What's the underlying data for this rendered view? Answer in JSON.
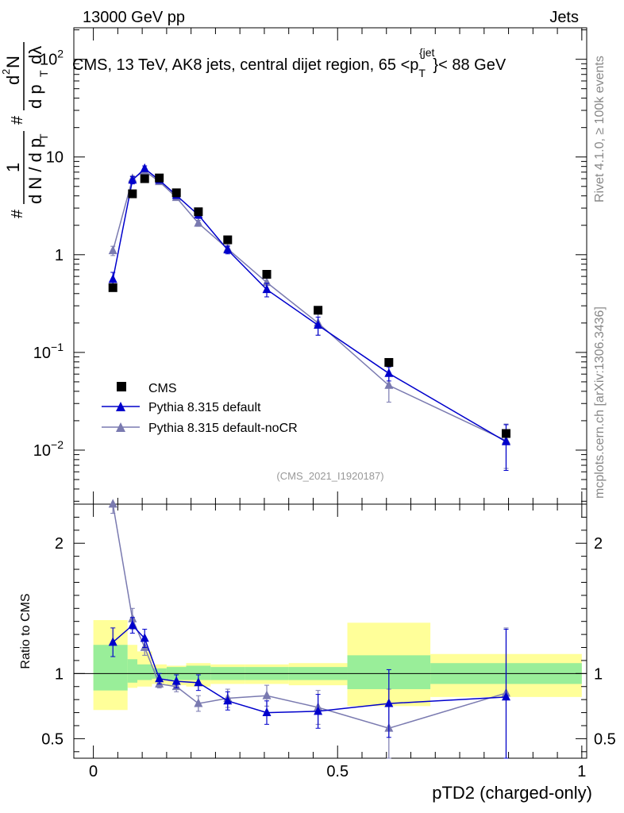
{
  "header": {
    "left": "13000 GeV pp",
    "right": "Jets"
  },
  "side_labels": {
    "rivet": "Rivet 4.1.0, ≥ 100k events",
    "mcplots": "mcplots.cern.ch [arXiv:1306.3436]"
  },
  "chart_data": [
    {
      "type": "scatter",
      "panel": "main",
      "title": "CMS, 13 TeV, AK8 jets, central dijet region, 65 <p_T^{jet}>< 88 GeV",
      "title_parts": {
        "a": "CMS, 13 TeV, AK8 jets, central dijet region, 65 <p",
        "sub": "T",
        "sup": "{jet",
        "b": "}< 88 GeV"
      },
      "ylabel": "1/(dN/dp_T) d²N/(dp_T dλ)",
      "ylabel_parts": {
        "hash": "#",
        "one": "1",
        "den": "d N / d p",
        "t": "T",
        "num": "d",
        "n": "N",
        "two": "2",
        "dp": "d p",
        "dl": "dλ"
      },
      "yscale": "log",
      "ylim": [
        0.0028,
        210
      ],
      "y_ticks": [
        {
          "value": 100,
          "base": "10",
          "exp": "2"
        },
        {
          "value": 10,
          "base": "10",
          "exp": ""
        },
        {
          "value": 1,
          "base": "1",
          "exp": ""
        },
        {
          "value": 0.1,
          "base": "10",
          "exp": "−1"
        },
        {
          "value": 0.01,
          "base": "10",
          "exp": "−2"
        }
      ],
      "x": [
        0.04,
        0.08,
        0.105,
        0.135,
        0.17,
        0.215,
        0.275,
        0.355,
        0.46,
        0.605,
        0.845
      ],
      "series": [
        {
          "name": "CMS",
          "marker": "square",
          "color": "#000000",
          "values": [
            0.46,
            4.2,
            6.0,
            6.1,
            4.3,
            2.75,
            1.42,
            0.63,
            0.27,
            0.079,
            0.0148
          ]
        },
        {
          "name": "Pythia 8.315 default",
          "marker": "triangle",
          "color": "#0000cc",
          "values": [
            0.56,
            5.8,
            7.6,
            5.8,
            4.05,
            2.55,
            1.12,
            0.44,
            0.19,
            0.061,
            0.0122
          ],
          "err_up": [
            0.1,
            0.5,
            0.5,
            0.35,
            0.25,
            0.2,
            0.1,
            0.07,
            0.04,
            0.01,
            0.006
          ],
          "err_dn": [
            0.1,
            0.5,
            0.5,
            0.35,
            0.25,
            0.2,
            0.1,
            0.07,
            0.04,
            0.01,
            0.006
          ]
        },
        {
          "name": "Pythia 8.315 default-noCR",
          "marker": "triangle",
          "color": "#7a7ab0",
          "values": [
            1.1,
            6.0,
            7.2,
            5.6,
            3.85,
            2.1,
            1.15,
            0.52,
            0.2,
            0.046,
            0.0125
          ],
          "err_up": [
            0.12,
            0.4,
            0.4,
            0.3,
            0.25,
            0.15,
            0.1,
            0.08,
            0.05,
            0.015,
            0.006
          ],
          "err_dn": [
            0.12,
            0.4,
            0.4,
            0.3,
            0.25,
            0.15,
            0.1,
            0.08,
            0.05,
            0.015,
            0.006
          ]
        }
      ],
      "legend": [
        "CMS",
        "Pythia 8.315 default",
        "Pythia 8.315 default-noCR"
      ],
      "legend_position": "bottom-left",
      "annotation": "(CMS_2021_I1920187)"
    },
    {
      "type": "line",
      "panel": "ratio",
      "ylabel": "Ratio to CMS",
      "xlabel": "pTD2 (charged-only)",
      "xlim": [
        -0.04,
        1.01
      ],
      "ylim": [
        0.35,
        2.3
      ],
      "x_ticks": [
        {
          "value": 0,
          "label": "0"
        },
        {
          "value": 0.5,
          "label": "0.5"
        },
        {
          "value": 1,
          "label": "1"
        }
      ],
      "y_ticks": [
        {
          "value": 0.5,
          "label": "0.5"
        },
        {
          "value": 1,
          "label": "1"
        },
        {
          "value": 2,
          "label": "2"
        }
      ],
      "reference_line": 1,
      "bands": [
        {
          "x_lo": 0.0,
          "x_hi": 0.07,
          "yellow": [
            0.72,
            1.41
          ],
          "green": [
            0.87,
            1.22
          ]
        },
        {
          "x_lo": 0.07,
          "x_hi": 0.09,
          "yellow": [
            0.89,
            1.22
          ],
          "green": [
            0.93,
            1.11
          ]
        },
        {
          "x_lo": 0.09,
          "x_hi": 0.12,
          "yellow": [
            0.9,
            1.17
          ],
          "green": [
            0.95,
            1.07
          ]
        },
        {
          "x_lo": 0.12,
          "x_hi": 0.15,
          "yellow": [
            0.92,
            1.07
          ],
          "green": [
            0.96,
            1.04
          ]
        },
        {
          "x_lo": 0.15,
          "x_hi": 0.19,
          "yellow": [
            0.91,
            1.06
          ],
          "green": [
            0.95,
            1.05
          ]
        },
        {
          "x_lo": 0.19,
          "x_hi": 0.24,
          "yellow": [
            0.9,
            1.08
          ],
          "green": [
            0.95,
            1.06
          ]
        },
        {
          "x_lo": 0.24,
          "x_hi": 0.31,
          "yellow": [
            0.92,
            1.07
          ],
          "green": [
            0.95,
            1.05
          ]
        },
        {
          "x_lo": 0.31,
          "x_hi": 0.4,
          "yellow": [
            0.92,
            1.07
          ],
          "green": [
            0.95,
            1.05
          ]
        },
        {
          "x_lo": 0.4,
          "x_hi": 0.52,
          "yellow": [
            0.91,
            1.08
          ],
          "green": [
            0.95,
            1.05
          ]
        },
        {
          "x_lo": 0.52,
          "x_hi": 0.69,
          "yellow": [
            0.75,
            1.39
          ],
          "green": [
            0.88,
            1.14
          ]
        },
        {
          "x_lo": 0.69,
          "x_hi": 1.0,
          "yellow": [
            0.82,
            1.15
          ],
          "green": [
            0.92,
            1.08
          ]
        }
      ],
      "series": [
        {
          "name": "Pythia 8.315 default",
          "color": "#0000cc",
          "values": [
            1.24,
            1.37,
            1.27,
            0.96,
            0.94,
            0.93,
            0.79,
            0.7,
            0.71,
            0.77,
            0.82
          ],
          "err_up": [
            0.11,
            0.06,
            0.07,
            0.04,
            0.05,
            0.06,
            0.07,
            0.09,
            0.13,
            0.26,
            0.52
          ],
          "err_dn": [
            0.11,
            0.06,
            0.07,
            0.04,
            0.05,
            0.06,
            0.07,
            0.09,
            0.13,
            0.26,
            0.52
          ]
        },
        {
          "name": "Pythia 8.315 default-noCR",
          "color": "#7a7ab0",
          "values": [
            2.33,
            1.42,
            1.2,
            0.92,
            0.9,
            0.77,
            0.81,
            0.83,
            0.74,
            0.58,
            0.85
          ],
          "err_up": [
            0.1,
            0.08,
            0.06,
            0.03,
            0.04,
            0.06,
            0.07,
            0.08,
            0.13,
            0.3,
            0.5
          ],
          "err_dn": [
            0.1,
            0.08,
            0.06,
            0.03,
            0.04,
            0.06,
            0.07,
            0.08,
            0.13,
            0.3,
            0.5
          ]
        }
      ]
    }
  ]
}
